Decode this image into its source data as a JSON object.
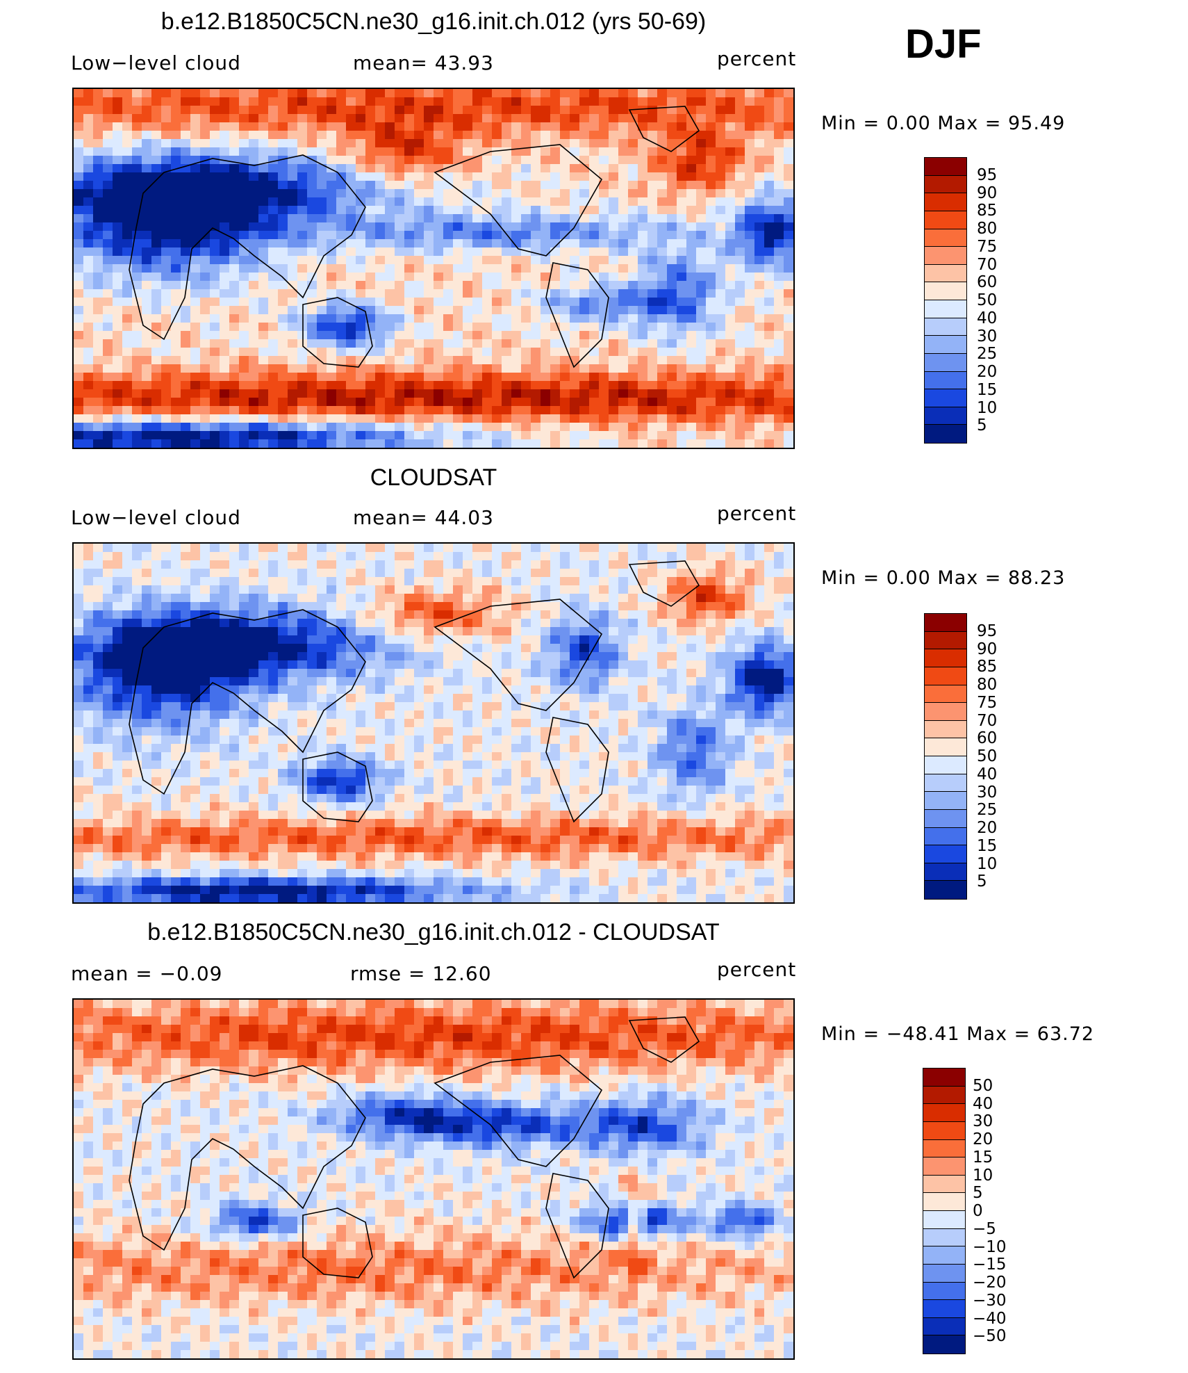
{
  "header": {
    "season": "DJF"
  },
  "panels": [
    {
      "title": "b.e12.B1850C5CN.ne30_g16.init.ch.012 (yrs 50-69)",
      "left_text": "Low−level cloud",
      "mid_text": "mean=   43.93",
      "right_text": "percent",
      "minmax": "Min =     0.00 Max =    95.49",
      "levels": [
        "95",
        "90",
        "85",
        "80",
        "75",
        "70",
        "60",
        "50",
        "40",
        "30",
        "25",
        "20",
        "15",
        "10",
        "5"
      ]
    },
    {
      "title": "CLOUDSAT",
      "left_text": "Low−level cloud",
      "mid_text": "mean=   44.03",
      "right_text": "percent",
      "minmax": "Min =     0.00 Max =    88.23",
      "levels": [
        "95",
        "90",
        "85",
        "80",
        "75",
        "70",
        "60",
        "50",
        "40",
        "30",
        "25",
        "20",
        "15",
        "10",
        "5"
      ]
    },
    {
      "title": "b.e12.B1850C5CN.ne30_g16.init.ch.012 - CLOUDSAT",
      "left_text": "mean =    −0.09",
      "mid_text": "rmse =    12.60",
      "right_text": "percent",
      "minmax": "Min = −48.41  Max =    63.72",
      "levels": [
        "50",
        "40",
        "30",
        "20",
        "15",
        "10",
        "5",
        "0",
        "−5",
        "−10",
        "−15",
        "−20",
        "−30",
        "−40",
        "−50"
      ]
    }
  ],
  "colorscale": [
    "#8b0000",
    "#b31a00",
    "#d92d00",
    "#f04a14",
    "#fa6e3a",
    "#fc9470",
    "#fdc3a6",
    "#fde8d8",
    "#dceaff",
    "#b7cdfb",
    "#93b3f7",
    "#6e93f0",
    "#4470eb",
    "#1a48e0",
    "#0a2eb8",
    "#001a80"
  ]
}
